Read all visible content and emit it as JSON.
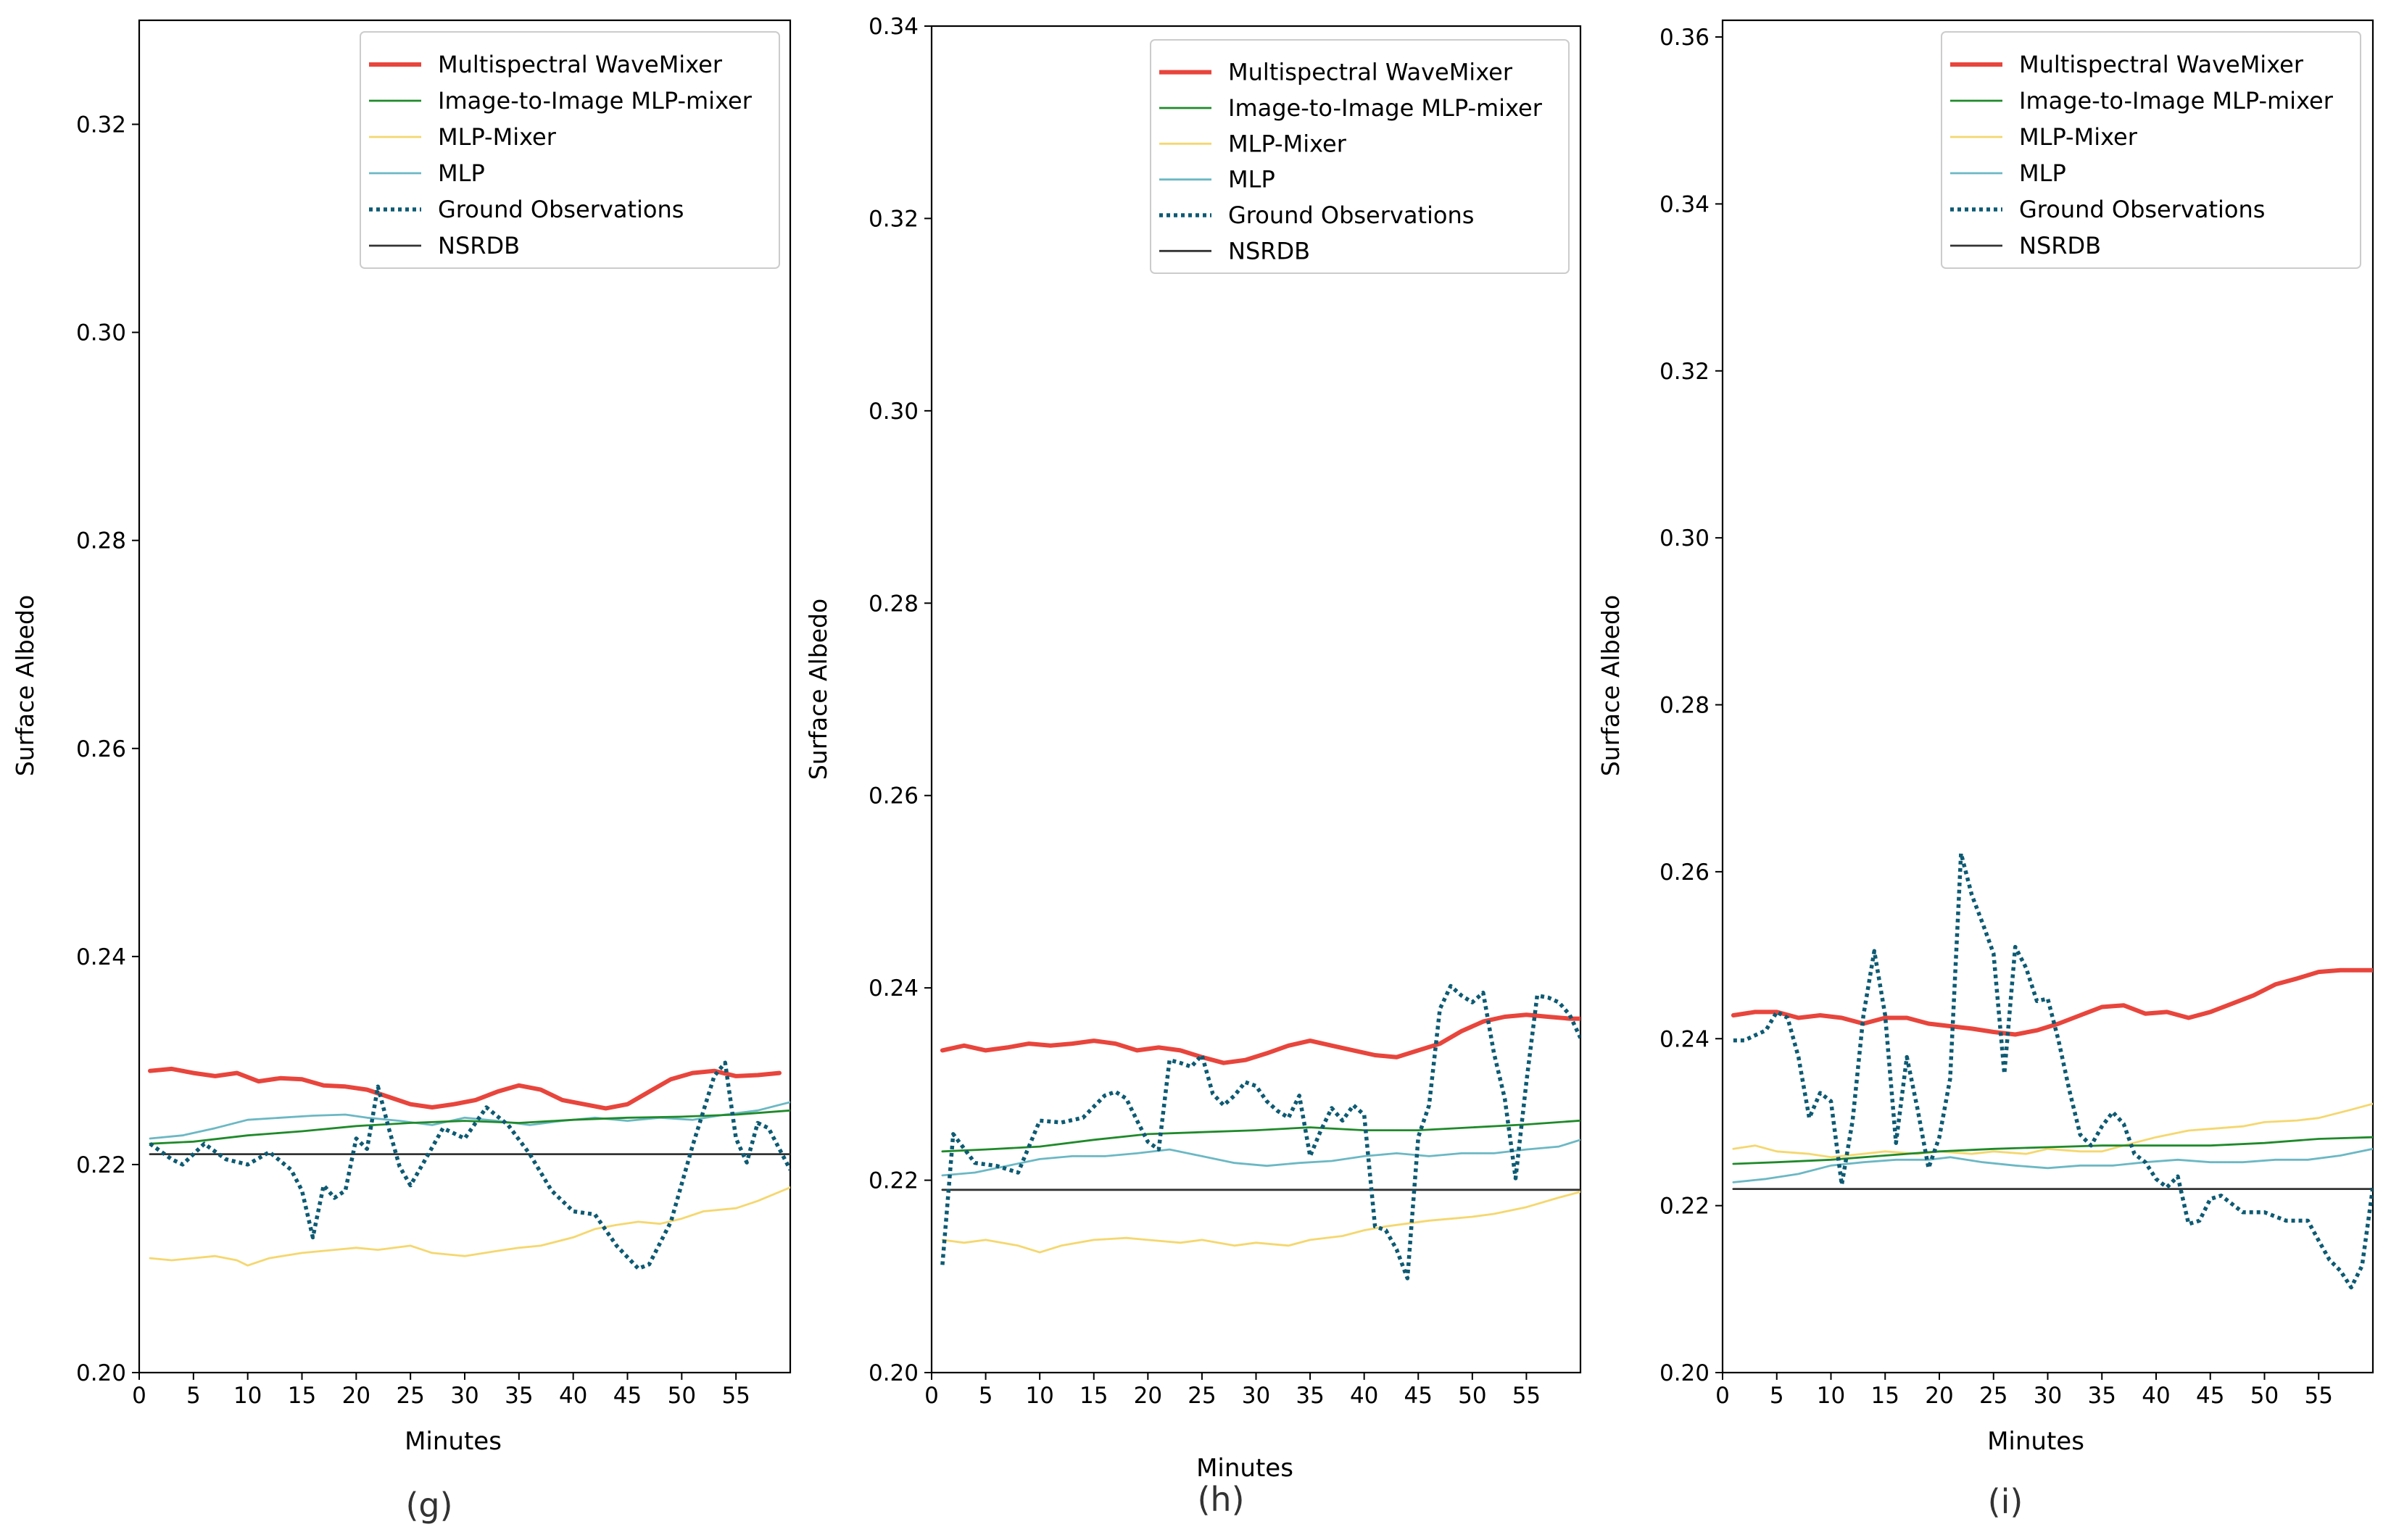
{
  "figure_label": "Surface albedo comparison panels",
  "colors": {
    "Multispectral WaveMixer": "#e8453c",
    "Image-to-Image MLP-mixer": "#1f8a2a",
    "MLP-Mixer": "#f5d76e",
    "MLP": "#6bb8c4",
    "Ground Observations": "#0d5a73",
    "NSRDB": "#333333"
  },
  "chart_data": [
    {
      "type": "line",
      "caption": "(g)",
      "title": "",
      "xlabel": "Minutes",
      "ylabel": "Surface Albedo",
      "xlim": [
        0,
        60
      ],
      "ylim": [
        0.2,
        0.33
      ],
      "xticks": [
        "0",
        "5",
        "10",
        "15",
        "20",
        "25",
        "30",
        "35",
        "40",
        "45",
        "50",
        "55"
      ],
      "yticks": [
        "0.20",
        "0.22",
        "0.24",
        "0.26",
        "0.28",
        "0.30",
        "0.32"
      ],
      "legend_position": "top-right",
      "series": [
        {
          "name": "Multispectral WaveMixer",
          "style": "thick",
          "x": [
            1,
            3,
            5,
            7,
            9,
            11,
            13,
            15,
            17,
            19,
            21,
            23,
            25,
            27,
            29,
            31,
            33,
            35,
            37,
            39,
            41,
            43,
            45,
            47,
            49,
            51,
            53,
            55,
            57,
            59
          ],
          "y": [
            0.229,
            0.2292,
            0.2288,
            0.2285,
            0.2288,
            0.228,
            0.2283,
            0.2282,
            0.2276,
            0.2275,
            0.2272,
            0.2265,
            0.2258,
            0.2255,
            0.2258,
            0.2262,
            0.227,
            0.2276,
            0.2272,
            0.2262,
            0.2258,
            0.2254,
            0.2258,
            0.227,
            0.2282,
            0.2288,
            0.229,
            0.2285,
            0.2286,
            0.2288
          ]
        },
        {
          "name": "Image-to-Image MLP-mixer",
          "style": "thin",
          "x": [
            1,
            5,
            10,
            15,
            20,
            25,
            30,
            35,
            40,
            45,
            50,
            55,
            60
          ],
          "y": [
            0.222,
            0.2222,
            0.2228,
            0.2232,
            0.2237,
            0.224,
            0.2242,
            0.224,
            0.2243,
            0.2245,
            0.2246,
            0.2248,
            0.2252
          ]
        },
        {
          "name": "MLP-Mixer",
          "style": "thin",
          "x": [
            1,
            3,
            5,
            7,
            9,
            10,
            12,
            15,
            18,
            20,
            22,
            25,
            27,
            30,
            33,
            35,
            37,
            40,
            42,
            44,
            46,
            48,
            50,
            52,
            55,
            57,
            60
          ],
          "y": [
            0.211,
            0.2108,
            0.211,
            0.2112,
            0.2108,
            0.2103,
            0.211,
            0.2115,
            0.2118,
            0.212,
            0.2118,
            0.2122,
            0.2115,
            0.2112,
            0.2117,
            0.212,
            0.2122,
            0.213,
            0.2138,
            0.2142,
            0.2145,
            0.2143,
            0.2148,
            0.2155,
            0.2158,
            0.2165,
            0.2178
          ]
        },
        {
          "name": "MLP",
          "style": "thin",
          "x": [
            1,
            4,
            7,
            10,
            13,
            16,
            19,
            21,
            24,
            27,
            30,
            33,
            36,
            39,
            42,
            45,
            48,
            51,
            54,
            57,
            60
          ],
          "y": [
            0.2225,
            0.2228,
            0.2235,
            0.2243,
            0.2245,
            0.2247,
            0.2248,
            0.2245,
            0.2242,
            0.2238,
            0.2245,
            0.2242,
            0.2238,
            0.2242,
            0.2245,
            0.2242,
            0.2245,
            0.2243,
            0.2248,
            0.2252,
            0.226
          ]
        },
        {
          "name": "Ground Observations",
          "style": "dotted",
          "x": [
            1,
            3,
            4,
            6,
            8,
            10,
            12,
            14,
            15,
            16,
            17,
            18,
            19,
            20,
            21,
            22,
            23,
            24,
            25,
            26,
            28,
            30,
            32,
            34,
            36,
            38,
            40,
            42,
            44,
            46,
            47,
            49,
            51,
            53,
            54,
            55,
            56,
            57,
            58,
            60
          ],
          "y": [
            0.222,
            0.2205,
            0.22,
            0.222,
            0.2205,
            0.22,
            0.2212,
            0.2195,
            0.2175,
            0.213,
            0.218,
            0.2168,
            0.2175,
            0.2225,
            0.2215,
            0.2275,
            0.2235,
            0.2198,
            0.218,
            0.2198,
            0.2235,
            0.2225,
            0.2255,
            0.2238,
            0.221,
            0.2175,
            0.2155,
            0.2152,
            0.2122,
            0.21,
            0.2104,
            0.2145,
            0.2218,
            0.2285,
            0.2298,
            0.2225,
            0.2202,
            0.224,
            0.2235,
            0.2195
          ]
        },
        {
          "name": "NSRDB",
          "style": "thin",
          "x": [
            1,
            60
          ],
          "y": [
            0.221,
            0.221
          ]
        }
      ]
    },
    {
      "type": "line",
      "caption": "(h)",
      "title": "",
      "xlabel": "Minutes",
      "ylabel": "Surface Albedo",
      "xlim": [
        0,
        60
      ],
      "ylim": [
        0.2,
        0.34
      ],
      "xticks": [
        "0",
        "5",
        "10",
        "15",
        "20",
        "25",
        "30",
        "35",
        "40",
        "45",
        "50",
        "55"
      ],
      "yticks": [
        "0.20",
        "0.22",
        "0.24",
        "0.26",
        "0.28",
        "0.30",
        "0.32",
        "0.34"
      ],
      "legend_position": "top-right",
      "series": [
        {
          "name": "Multispectral WaveMixer",
          "style": "thick",
          "x": [
            1,
            3,
            5,
            7,
            9,
            11,
            13,
            15,
            17,
            19,
            21,
            23,
            25,
            27,
            29,
            31,
            33,
            35,
            37,
            39,
            41,
            43,
            45,
            47,
            49,
            51,
            53,
            55,
            57,
            59,
            60
          ],
          "y": [
            0.2335,
            0.234,
            0.2335,
            0.2338,
            0.2342,
            0.234,
            0.2342,
            0.2345,
            0.2342,
            0.2335,
            0.2338,
            0.2335,
            0.2328,
            0.2322,
            0.2325,
            0.2332,
            0.234,
            0.2345,
            0.234,
            0.2335,
            0.233,
            0.2328,
            0.2335,
            0.2342,
            0.2355,
            0.2365,
            0.237,
            0.2372,
            0.237,
            0.2368,
            0.2368
          ]
        },
        {
          "name": "Image-to-Image MLP-mixer",
          "style": "thin",
          "x": [
            1,
            5,
            10,
            15,
            20,
            25,
            30,
            35,
            40,
            45,
            50,
            55,
            60
          ],
          "y": [
            0.223,
            0.2232,
            0.2235,
            0.2242,
            0.2248,
            0.225,
            0.2252,
            0.2255,
            0.2252,
            0.2252,
            0.2255,
            0.2258,
            0.2262
          ]
        },
        {
          "name": "MLP-Mixer",
          "style": "thin",
          "x": [
            1,
            3,
            5,
            8,
            10,
            12,
            15,
            18,
            20,
            23,
            25,
            28,
            30,
            33,
            35,
            38,
            40,
            42,
            44,
            46,
            48,
            50,
            52,
            55,
            58,
            60
          ],
          "y": [
            0.2138,
            0.2135,
            0.2138,
            0.2132,
            0.2125,
            0.2132,
            0.2138,
            0.214,
            0.2138,
            0.2135,
            0.2138,
            0.2132,
            0.2135,
            0.2132,
            0.2138,
            0.2142,
            0.2148,
            0.2152,
            0.2155,
            0.2158,
            0.216,
            0.2162,
            0.2165,
            0.2172,
            0.2182,
            0.2188
          ]
        },
        {
          "name": "MLP",
          "style": "thin",
          "x": [
            1,
            4,
            7,
            10,
            13,
            16,
            19,
            22,
            25,
            28,
            31,
            34,
            37,
            40,
            43,
            46,
            49,
            52,
            55,
            58,
            60
          ],
          "y": [
            0.2205,
            0.2208,
            0.2215,
            0.2222,
            0.2225,
            0.2225,
            0.2228,
            0.2232,
            0.2225,
            0.2218,
            0.2215,
            0.2218,
            0.222,
            0.2225,
            0.2228,
            0.2225,
            0.2228,
            0.2228,
            0.2232,
            0.2235,
            0.2242
          ]
        },
        {
          "name": "Ground Observations",
          "style": "dotted",
          "x": [
            1,
            2,
            4,
            6,
            8,
            10,
            12,
            14,
            16,
            17,
            18,
            19,
            20,
            21,
            22,
            23,
            24,
            25,
            26,
            27,
            28,
            29,
            30,
            31,
            32,
            33,
            34,
            35,
            36,
            37,
            38,
            39,
            40,
            41,
            42,
            43,
            44,
            45,
            46,
            47,
            48,
            49,
            50,
            51,
            52,
            53,
            54,
            55,
            56,
            57,
            58,
            59,
            60
          ],
          "y": [
            0.2112,
            0.2248,
            0.2218,
            0.2215,
            0.2208,
            0.2262,
            0.226,
            0.2265,
            0.2288,
            0.2292,
            0.2285,
            0.2262,
            0.224,
            0.2232,
            0.2325,
            0.2322,
            0.2318,
            0.233,
            0.229,
            0.2278,
            0.2288,
            0.2302,
            0.2298,
            0.2282,
            0.2272,
            0.2265,
            0.2288,
            0.2225,
            0.2252,
            0.2275,
            0.2262,
            0.2278,
            0.2268,
            0.2152,
            0.2148,
            0.2128,
            0.2098,
            0.2245,
            0.2278,
            0.2378,
            0.2402,
            0.2392,
            0.2385,
            0.2395,
            0.2332,
            0.2285,
            0.2202,
            0.2302,
            0.2392,
            0.239,
            0.2385,
            0.2372,
            0.2348
          ]
        },
        {
          "name": "NSRDB",
          "style": "thin",
          "x": [
            1,
            60
          ],
          "y": [
            0.219,
            0.219
          ]
        }
      ]
    },
    {
      "type": "line",
      "caption": "(i)",
      "title": "",
      "xlabel": "Minutes",
      "ylabel": "Surface Albedo",
      "xlim": [
        0,
        60
      ],
      "ylim": [
        0.2,
        0.362
      ],
      "xticks": [
        "0",
        "5",
        "10",
        "15",
        "20",
        "25",
        "30",
        "35",
        "40",
        "45",
        "50",
        "55"
      ],
      "yticks": [
        "0.20",
        "0.22",
        "0.24",
        "0.26",
        "0.28",
        "0.30",
        "0.32",
        "0.34",
        "0.36"
      ],
      "legend_position": "top-right",
      "series": [
        {
          "name": "Multispectral WaveMixer",
          "style": "thick",
          "x": [
            1,
            3,
            5,
            7,
            9,
            11,
            13,
            15,
            17,
            19,
            21,
            23,
            25,
            27,
            29,
            31,
            33,
            35,
            37,
            39,
            41,
            43,
            45,
            47,
            49,
            51,
            53,
            55,
            57,
            59,
            60
          ],
          "y": [
            0.2428,
            0.2432,
            0.2432,
            0.2425,
            0.2428,
            0.2425,
            0.2418,
            0.2425,
            0.2425,
            0.2418,
            0.2415,
            0.2412,
            0.2408,
            0.2405,
            0.241,
            0.2418,
            0.2428,
            0.2438,
            0.244,
            0.243,
            0.2432,
            0.2425,
            0.2432,
            0.2442,
            0.2452,
            0.2465,
            0.2472,
            0.248,
            0.2482,
            0.2482,
            0.2482
          ]
        },
        {
          "name": "Image-to-Image MLP-mixer",
          "style": "thin",
          "x": [
            1,
            5,
            10,
            15,
            20,
            25,
            30,
            35,
            40,
            45,
            50,
            55,
            60
          ],
          "y": [
            0.225,
            0.2252,
            0.2255,
            0.226,
            0.2265,
            0.2268,
            0.227,
            0.2272,
            0.2272,
            0.2272,
            0.2275,
            0.228,
            0.2282
          ]
        },
        {
          "name": "MLP-Mixer",
          "style": "thin",
          "x": [
            1,
            3,
            5,
            8,
            10,
            13,
            15,
            18,
            20,
            23,
            25,
            28,
            30,
            33,
            35,
            37,
            40,
            43,
            45,
            48,
            50,
            53,
            55,
            58,
            60
          ],
          "y": [
            0.2268,
            0.2272,
            0.2265,
            0.2262,
            0.2258,
            0.2262,
            0.2265,
            0.2262,
            0.2265,
            0.2262,
            0.2265,
            0.2262,
            0.2268,
            0.2265,
            0.2265,
            0.2272,
            0.2282,
            0.229,
            0.2292,
            0.2295,
            0.23,
            0.2302,
            0.2305,
            0.2315,
            0.2322
          ]
        },
        {
          "name": "MLP",
          "style": "thin",
          "x": [
            1,
            4,
            7,
            10,
            13,
            16,
            19,
            21,
            24,
            27,
            30,
            33,
            36,
            39,
            42,
            45,
            48,
            51,
            54,
            57,
            60
          ],
          "y": [
            0.2228,
            0.2232,
            0.2238,
            0.2248,
            0.2252,
            0.2255,
            0.2255,
            0.2258,
            0.2252,
            0.2248,
            0.2245,
            0.2248,
            0.2248,
            0.2252,
            0.2255,
            0.2252,
            0.2252,
            0.2255,
            0.2255,
            0.226,
            0.2268
          ]
        },
        {
          "name": "Ground Observations",
          "style": "dotted",
          "x": [
            1,
            2,
            4,
            5,
            6,
            7,
            8,
            9,
            10,
            11,
            12,
            13,
            14,
            15,
            16,
            17,
            18,
            19,
            20,
            21,
            22,
            23,
            24,
            25,
            26,
            27,
            28,
            29,
            30,
            31,
            32,
            33,
            34,
            35,
            36,
            37,
            38,
            39,
            40,
            41,
            42,
            43,
            44,
            45,
            46,
            48,
            50,
            52,
            54,
            55,
            56,
            57,
            58,
            59,
            60
          ],
          "y": [
            0.2398,
            0.2398,
            0.241,
            0.2432,
            0.2425,
            0.2378,
            0.2305,
            0.2335,
            0.2325,
            0.2225,
            0.2302,
            0.2428,
            0.2505,
            0.2428,
            0.2275,
            0.2378,
            0.2315,
            0.2245,
            0.2282,
            0.2352,
            0.2622,
            0.2572,
            0.2538,
            0.2502,
            0.2358,
            0.251,
            0.2485,
            0.2445,
            0.2448,
            0.2398,
            0.2338,
            0.2285,
            0.2272,
            0.2295,
            0.2312,
            0.2298,
            0.2262,
            0.2252,
            0.2232,
            0.2222,
            0.2235,
            0.2178,
            0.2182,
            0.2208,
            0.2212,
            0.2192,
            0.2192,
            0.2182,
            0.2182,
            0.2158,
            0.2135,
            0.2122,
            0.2102,
            0.2128,
            0.2222
          ]
        },
        {
          "name": "NSRDB",
          "style": "thin",
          "x": [
            1,
            60
          ],
          "y": [
            0.222,
            0.222
          ]
        }
      ]
    }
  ]
}
